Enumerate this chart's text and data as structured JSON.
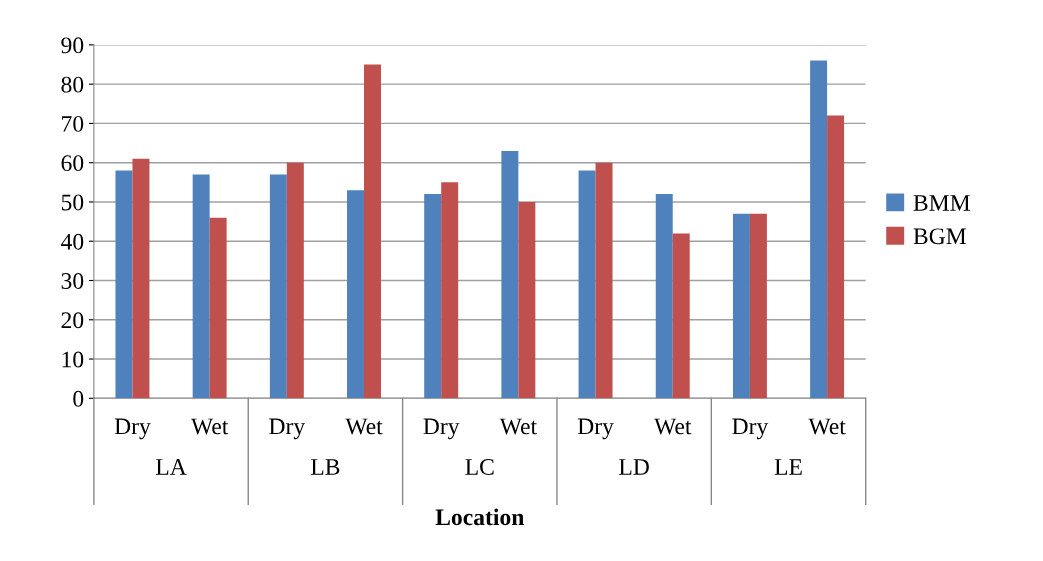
{
  "chart_data": {
    "type": "bar",
    "xlabel": "Location",
    "categories": [
      "Dry",
      "Wet",
      "Dry",
      "Wet",
      "Dry",
      "Wet",
      "Dry",
      "Wet",
      "Dry",
      "Wet"
    ],
    "series": [
      {
        "name": "BMM",
        "color": "#4f81bd",
        "values": [
          58,
          57,
          57,
          53,
          52,
          63,
          58,
          52,
          47,
          86
        ]
      },
      {
        "name": "BGM",
        "color": "#c0504d",
        "values": [
          61,
          46,
          60,
          85,
          55,
          50,
          60,
          42,
          47,
          72
        ]
      }
    ],
    "annotations": [
      "LA",
      "LB",
      "LC",
      "LD",
      "LE"
    ],
    "ylim": [
      0,
      90
    ],
    "yticks": [
      0,
      10,
      20,
      30,
      40,
      50,
      60,
      70,
      80,
      90
    ],
    "grid": "y",
    "legend": "right"
  }
}
